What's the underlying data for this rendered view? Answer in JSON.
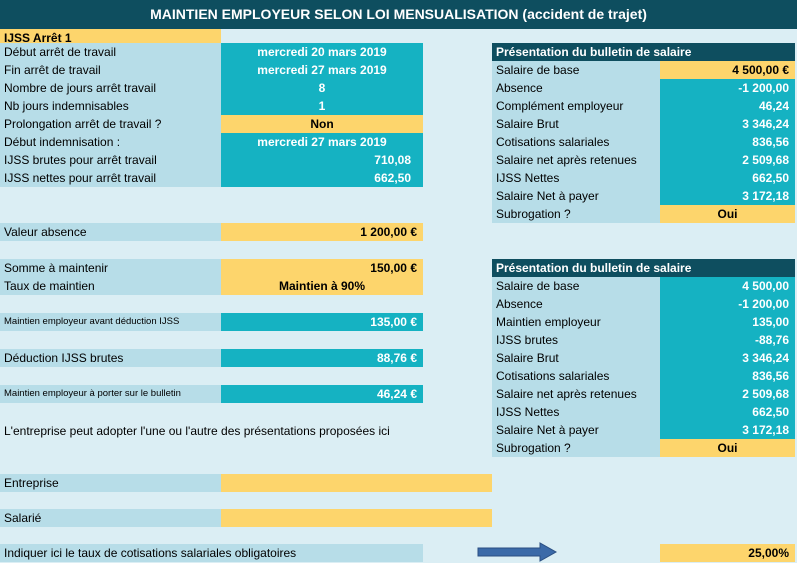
{
  "title": "MAINTIEN EMPLOYEUR SELON LOI MENSUALISATION (accident de trajet)",
  "left": {
    "section": "IJSS Arrêt 1",
    "rows": [
      {
        "label": "Début arrêt de travail",
        "value": "mercredi 20 mars 2019"
      },
      {
        "label": "Fin arrêt de travail",
        "value": "mercredi 27 mars 2019"
      },
      {
        "label": "Nombre de jours arrêt travail",
        "value": "8"
      },
      {
        "label": "Nb jours indemnisables",
        "value": "1"
      },
      {
        "label": "Prolongation arrêt de travail ?",
        "value": "Non"
      },
      {
        "label": "Début indemnisation :",
        "value": "mercredi 27 mars 2019"
      },
      {
        "label": "IJSS brutes pour arrêt travail",
        "value": "710,08"
      },
      {
        "label": "IJSS nettes pour arrêt travail",
        "value": "662,50"
      }
    ],
    "valeur_absence": {
      "label": "Valeur absence",
      "value": "1 200,00 €"
    },
    "somme_maintenir": {
      "label": "Somme à maintenir",
      "value": "150,00 €"
    },
    "taux_maintien": {
      "label": "Taux de maintien",
      "value": "Maintien à 90%"
    },
    "maintien_avant": {
      "label": "Maintien employeur avant déduction IJSS",
      "value": "135,00 €"
    },
    "deduction": {
      "label": "Déduction IJSS brutes",
      "value": "88,76 €"
    },
    "maintien_bulletin": {
      "label": "Maintien employeur à porter sur le bulletin",
      "value": "46,24 €"
    },
    "note": "L'entreprise peut adopter l'une ou l'autre des présentations proposées ici",
    "entreprise": {
      "label": "Entreprise",
      "value": ""
    },
    "salarie": {
      "label": "Salarié",
      "value": ""
    },
    "taux_cotisations": {
      "label": "Indiquer ici le taux de cotisations salariales obligatoires",
      "value": "25,00%"
    }
  },
  "bulletin1": {
    "header": "Présentation du bulletin de salaire",
    "rows": [
      {
        "label": "Salaire de base",
        "value": "4 500,00 €"
      },
      {
        "label": "Absence",
        "value": "-1 200,00"
      },
      {
        "label": "Complément employeur",
        "value": "46,24"
      },
      {
        "label": "Salaire Brut",
        "value": "3 346,24"
      },
      {
        "label": "Cotisations salariales",
        "value": "836,56"
      },
      {
        "label": "Salaire net après retenues",
        "value": "2 509,68"
      },
      {
        "label": "IJSS Nettes",
        "value": "662,50"
      },
      {
        "label": "Salaire Net à payer",
        "value": "3 172,18"
      },
      {
        "label": "Subrogation ?",
        "value": "Oui"
      }
    ]
  },
  "bulletin2": {
    "header": "Présentation du bulletin de salaire",
    "rows": [
      {
        "label": "Salaire de base",
        "value": "4 500,00"
      },
      {
        "label": "Absence",
        "value": "-1 200,00"
      },
      {
        "label": "Maintien employeur",
        "value": "135,00"
      },
      {
        "label": "IJSS brutes",
        "value": "-88,76"
      },
      {
        "label": "Salaire Brut",
        "value": "3 346,24"
      },
      {
        "label": "Cotisations salariales",
        "value": "836,56"
      },
      {
        "label": "Salaire net après retenues",
        "value": "2 509,68"
      },
      {
        "label": "IJSS Nettes",
        "value": "662,50"
      },
      {
        "label": "Salaire Net à payer",
        "value": "3 172,18"
      },
      {
        "label": "Subrogation ?",
        "value": "Oui"
      }
    ]
  }
}
